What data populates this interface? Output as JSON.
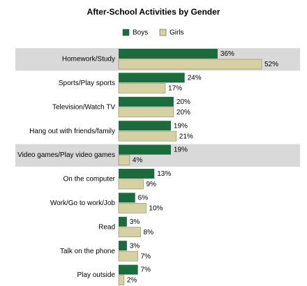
{
  "chart_data": {
    "type": "bar",
    "orientation": "horizontal",
    "title": "After-School Activities by Gender",
    "categories": [
      "Homework/Study",
      "Sports/Play sports",
      "Television/Watch TV",
      "Hang out with friends/family",
      "Video games/Play video games",
      "On the computer",
      "Work/Go to work/Job",
      "Read",
      "Talk on the phone",
      "Play outside"
    ],
    "series": [
      {
        "name": "Boys",
        "color": "#1b6b3d",
        "values": [
          36,
          24,
          20,
          19,
          19,
          13,
          6,
          3,
          3,
          7
        ],
        "value_labels": [
          "36%",
          "24%",
          "20%",
          "19%",
          "19%",
          "13%",
          "6%",
          "3%",
          "3%",
          "7%"
        ]
      },
      {
        "name": "Girls",
        "color": "#d6d1a2",
        "values": [
          52,
          17,
          20,
          21,
          4,
          9,
          10,
          8,
          7,
          2
        ],
        "value_labels": [
          "52%",
          "17%",
          "20%",
          "21%",
          "4%",
          "9%",
          "10%",
          "8%",
          "7%",
          "2%"
        ]
      }
    ],
    "highlight_rows": [
      0,
      4
    ],
    "highlight_color": "#d9d9d9",
    "legend": "top"
  }
}
